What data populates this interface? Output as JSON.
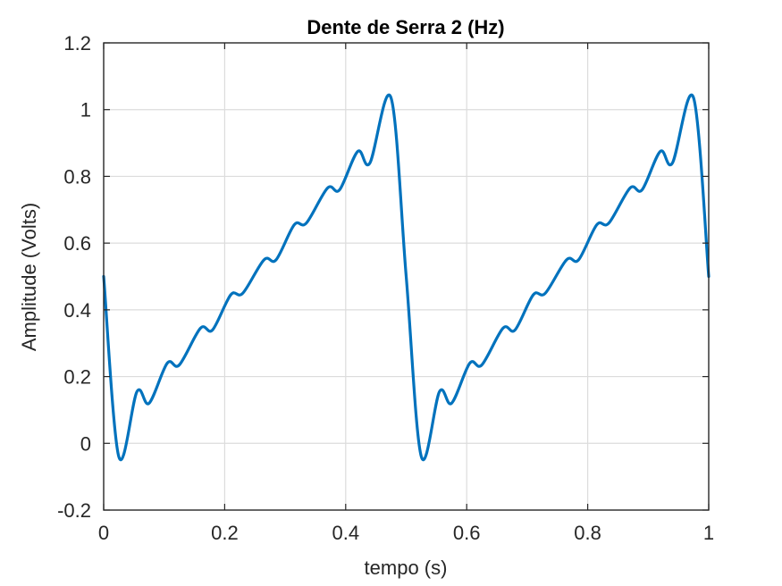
{
  "chart_data": {
    "type": "line",
    "title": "Dente de Serra 2 (Hz)",
    "xlabel": "tempo (s)",
    "ylabel": "Amplitude (Volts)",
    "xlim": [
      0,
      1
    ],
    "ylim": [
      -0.2,
      1.2
    ],
    "grid": true,
    "x_ticks": [
      0,
      0.2,
      0.4,
      0.6,
      0.8,
      1
    ],
    "x_tick_labels": [
      "0",
      "0.2",
      "0.4",
      "0.6",
      "0.8",
      "1"
    ],
    "y_ticks": [
      -0.2,
      0,
      0.2,
      0.4,
      0.6,
      0.8,
      1,
      1.2
    ],
    "y_tick_labels": [
      "-0.2",
      "0",
      "0.2",
      "0.4",
      "0.6",
      "0.8",
      "1",
      "1.2"
    ],
    "series": [
      {
        "color": "#0072bd",
        "x": [
          0,
          0.025,
          0.055,
          0.075,
          0.105,
          0.125,
          0.16,
          0.18,
          0.21,
          0.23,
          0.265,
          0.285,
          0.315,
          0.335,
          0.37,
          0.39,
          0.42,
          0.44,
          0.475,
          0.5,
          0.525,
          0.555,
          0.575,
          0.605,
          0.625,
          0.66,
          0.68,
          0.71,
          0.73,
          0.765,
          0.785,
          0.815,
          0.835,
          0.87,
          0.89,
          0.92,
          0.94,
          0.975,
          1
        ],
        "y": [
          0.5,
          -0.04,
          0.155,
          0.12,
          0.24,
          0.235,
          0.345,
          0.34,
          0.445,
          0.45,
          0.55,
          0.55,
          0.655,
          0.66,
          0.765,
          0.76,
          0.875,
          0.84,
          1.035,
          0.5,
          -0.04,
          0.155,
          0.12,
          0.24,
          0.235,
          0.345,
          0.34,
          0.445,
          0.45,
          0.55,
          0.55,
          0.655,
          0.66,
          0.765,
          0.76,
          0.875,
          0.84,
          1.035,
          0.5
        ]
      }
    ]
  }
}
